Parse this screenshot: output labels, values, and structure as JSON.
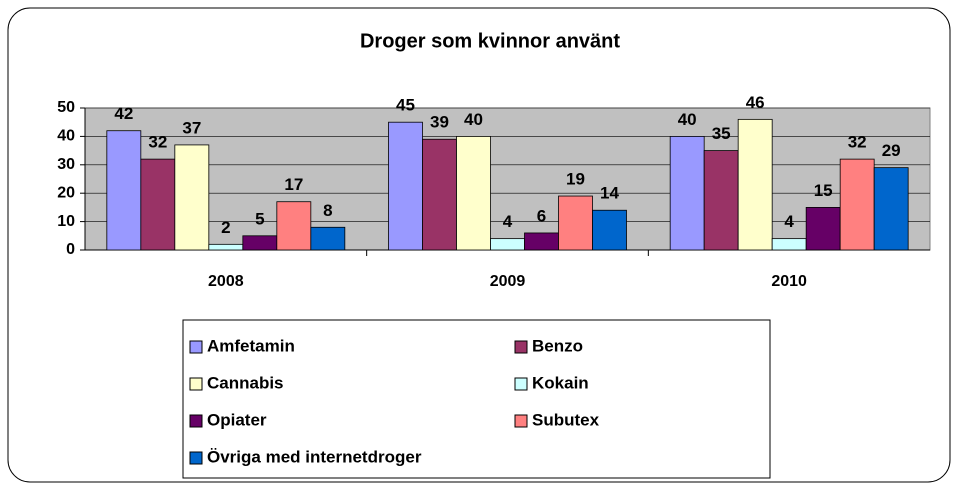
{
  "chart_data": {
    "type": "bar",
    "title": "Droger som kvinnor använt",
    "categories": [
      "2008",
      "2009",
      "2010"
    ],
    "series": [
      {
        "name": "Amfetamin",
        "color": "#9999ff",
        "values": [
          42,
          45,
          40
        ]
      },
      {
        "name": "Benzo",
        "color": "#993366",
        "values": [
          32,
          39,
          35
        ]
      },
      {
        "name": "Cannabis",
        "color": "#ffffcc",
        "values": [
          37,
          40,
          46
        ]
      },
      {
        "name": "Kokain",
        "color": "#ccffff",
        "values": [
          2,
          4,
          4
        ]
      },
      {
        "name": "Opiater",
        "color": "#660066",
        "values": [
          5,
          6,
          15
        ]
      },
      {
        "name": "Subutex",
        "color": "#ff8080",
        "values": [
          17,
          19,
          32
        ]
      },
      {
        "name": "Övriga med internetdroger",
        "color": "#0066cc",
        "values": [
          8,
          14,
          29
        ]
      }
    ],
    "ylim": [
      0,
      50
    ],
    "yticks": [
      0,
      10,
      20,
      30,
      40,
      50
    ],
    "grid": true
  }
}
